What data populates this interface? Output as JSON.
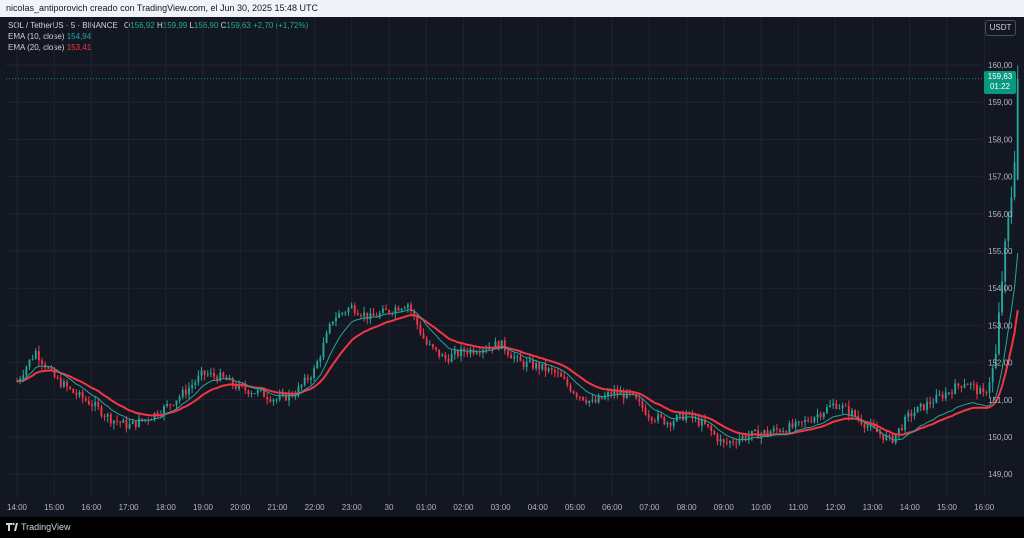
{
  "header": {
    "text": "nicolas_antiporovich creado con TradingView.com, el Jun 30, 2025 15:48 UTC"
  },
  "legend": {
    "symbol": "SOL / TetherUS · 5 · BINANCE",
    "open_label": "O",
    "open": "156,92",
    "high_label": "H",
    "high": "159,99",
    "low_label": "L",
    "low": "156,90",
    "close_label": "C",
    "close": "159,63",
    "change": "+2,70 (+1,72%)",
    "ema10_label": "EMA (10, close)",
    "ema10_value": "154,94",
    "ema20_label": "EMA (20, close)",
    "ema20_value": "153,41"
  },
  "currency": "USDT",
  "last_price": {
    "price": "159,63",
    "countdown": "01:22"
  },
  "footer": {
    "brand": "TradingView"
  },
  "colors": {
    "up": "#26a69a",
    "down": "#f23645",
    "ema10": "#26a69a",
    "ema20": "#f23645",
    "background": "#131722",
    "grid": "#1f2430",
    "badge": "#089981"
  },
  "chart_data": {
    "type": "candlestick",
    "symbol": "SOL / TetherUS",
    "interval": "5",
    "exchange": "BINANCE",
    "y_ticks": [
      "160,00",
      "159,00",
      "158,00",
      "157,00",
      "156,00",
      "155,00",
      "154,00",
      "153,00",
      "152,00",
      "151,00",
      "150,00",
      "149,00"
    ],
    "x_ticks": [
      "14:00",
      "15:00",
      "16:00",
      "17:00",
      "18:00",
      "19:00",
      "20:00",
      "21:00",
      "22:00",
      "23:00",
      "30",
      "01:00",
      "02:00",
      "03:00",
      "04:00",
      "05:00",
      "06:00",
      "07:00",
      "08:00",
      "09:00",
      "10:00",
      "11:00",
      "12:00",
      "13:00",
      "14:00",
      "15:00",
      "16:00"
    ],
    "ylim": [
      148.7,
      160.3
    ],
    "x_range_hours": [
      13.8,
      16.2
    ],
    "approx_close_path": [
      {
        "t": 0.0,
        "p": 151.5
      },
      {
        "t": 0.5,
        "p": 152.3
      },
      {
        "t": 1.0,
        "p": 151.6
      },
      {
        "t": 1.5,
        "p": 151.2
      },
      {
        "t": 2.0,
        "p": 150.9
      },
      {
        "t": 2.5,
        "p": 150.5
      },
      {
        "t": 3.0,
        "p": 150.3
      },
      {
        "t": 3.5,
        "p": 150.5
      },
      {
        "t": 4.0,
        "p": 150.8
      },
      {
        "t": 4.5,
        "p": 151.2
      },
      {
        "t": 5.0,
        "p": 151.7
      },
      {
        "t": 5.5,
        "p": 151.6
      },
      {
        "t": 6.0,
        "p": 151.3
      },
      {
        "t": 6.5,
        "p": 151.2
      },
      {
        "t": 7.0,
        "p": 151.0
      },
      {
        "t": 7.5,
        "p": 151.2
      },
      {
        "t": 8.0,
        "p": 151.8
      },
      {
        "t": 8.5,
        "p": 153.2
      },
      {
        "t": 9.0,
        "p": 153.5
      },
      {
        "t": 9.5,
        "p": 153.2
      },
      {
        "t": 10.0,
        "p": 153.4
      },
      {
        "t": 10.5,
        "p": 153.6
      },
      {
        "t": 11.0,
        "p": 152.5
      },
      {
        "t": 11.5,
        "p": 152.1
      },
      {
        "t": 12.0,
        "p": 152.3
      },
      {
        "t": 12.5,
        "p": 152.4
      },
      {
        "t": 13.0,
        "p": 152.5
      },
      {
        "t": 13.5,
        "p": 152.0
      },
      {
        "t": 14.0,
        "p": 151.9
      },
      {
        "t": 14.5,
        "p": 151.7
      },
      {
        "t": 15.0,
        "p": 151.2
      },
      {
        "t": 15.5,
        "p": 150.9
      },
      {
        "t": 16.0,
        "p": 151.2
      },
      {
        "t": 16.5,
        "p": 151.1
      },
      {
        "t": 17.0,
        "p": 150.6
      },
      {
        "t": 17.5,
        "p": 150.4
      },
      {
        "t": 18.0,
        "p": 150.6
      },
      {
        "t": 18.5,
        "p": 150.3
      },
      {
        "t": 19.0,
        "p": 149.8
      },
      {
        "t": 19.5,
        "p": 150.0
      },
      {
        "t": 20.0,
        "p": 150.1
      },
      {
        "t": 20.5,
        "p": 150.2
      },
      {
        "t": 21.0,
        "p": 150.3
      },
      {
        "t": 21.5,
        "p": 150.6
      },
      {
        "t": 22.0,
        "p": 150.9
      },
      {
        "t": 22.5,
        "p": 150.6
      },
      {
        "t": 23.0,
        "p": 150.2
      },
      {
        "t": 23.5,
        "p": 149.9
      },
      {
        "t": 24.0,
        "p": 150.6
      },
      {
        "t": 24.5,
        "p": 150.9
      },
      {
        "t": 25.0,
        "p": 151.2
      },
      {
        "t": 25.5,
        "p": 151.5
      },
      {
        "t": 26.0,
        "p": 151.1
      },
      {
        "t": 26.3,
        "p": 152.0
      },
      {
        "t": 26.5,
        "p": 154.5
      },
      {
        "t": 26.7,
        "p": 156.2
      },
      {
        "t": 26.8,
        "p": 157.2
      },
      {
        "t": 26.9,
        "p": 159.63
      }
    ]
  }
}
